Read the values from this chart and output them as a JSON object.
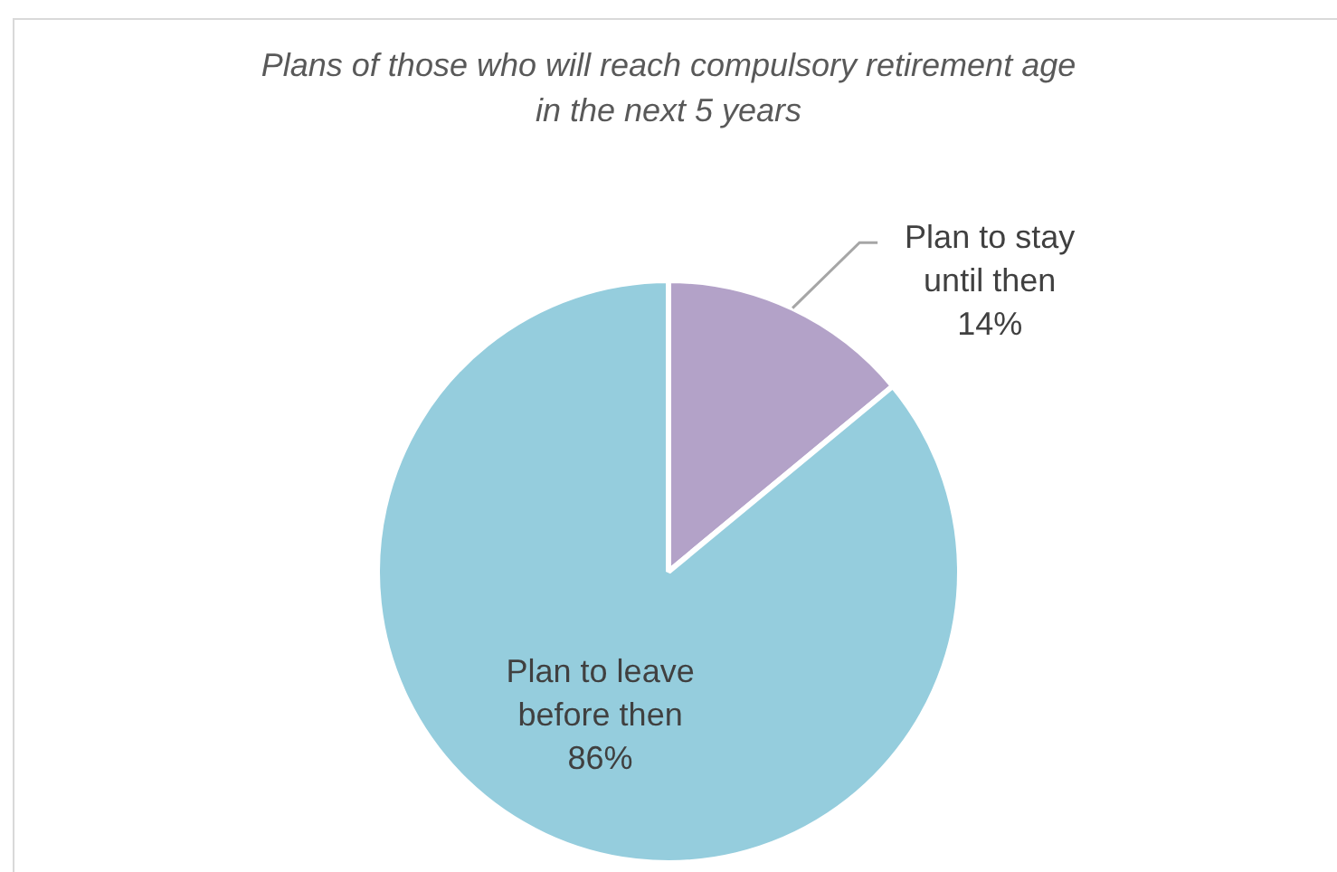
{
  "chart_data": {
    "type": "pie",
    "title": "Plans of those who will reach compulsory retirement age in the next 5 years",
    "categories": [
      "Plan to stay until then",
      "Plan to leave before then"
    ],
    "values": [
      14,
      86
    ],
    "colors": [
      "#b3a2c8",
      "#95cddd"
    ],
    "value_labels": [
      "14%",
      "86%"
    ],
    "legend": false
  }
}
